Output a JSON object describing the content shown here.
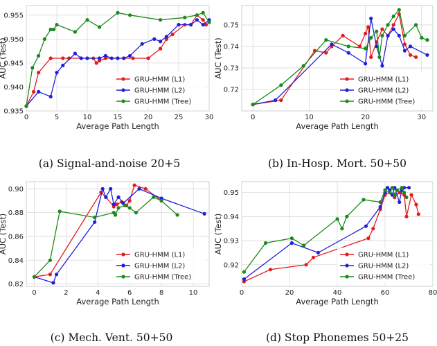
{
  "series_colors": {
    "GRU-HMM (L1)": "#e41a1c",
    "GRU-HMM (L2)": "#1f1fe0",
    "GRU-HMM (Tree)": "#1a8a1a"
  },
  "chart_data": [
    {
      "type": "line",
      "caption": "(a) Signal-and-noise 20+5",
      "xlabel": "Average Path Length",
      "ylabel": "AUC (Test)",
      "xlim": [
        0,
        30
      ],
      "ylim": [
        0.935,
        0.957
      ],
      "xticks": [
        0,
        5,
        10,
        15,
        20,
        25,
        30
      ],
      "yticks": [
        0.935,
        0.94,
        0.945,
        0.95,
        0.955
      ],
      "grid": true,
      "legend": "bottom-right",
      "series": [
        {
          "name": "GRU-HMM (L1)",
          "color": "#e41a1c",
          "points": [
            [
              0,
              0.936
            ],
            [
              1.2,
              0.939
            ],
            [
              2,
              0.943
            ],
            [
              4,
              0.946
            ],
            [
              6,
              0.946
            ],
            [
              7,
              0.946
            ],
            [
              9,
              0.946
            ],
            [
              11,
              0.946
            ],
            [
              11.5,
              0.945
            ],
            [
              12,
              0.9455
            ],
            [
              13,
              0.946
            ],
            [
              15,
              0.946
            ],
            [
              16,
              0.946
            ],
            [
              17.5,
              0.946
            ],
            [
              20,
              0.946
            ],
            [
              22,
              0.948
            ],
            [
              23,
              0.95
            ],
            [
              24,
              0.951
            ],
            [
              26,
              0.953
            ],
            [
              27,
              0.953
            ],
            [
              28,
              0.955
            ],
            [
              29,
              0.954
            ],
            [
              29.5,
              0.953
            ]
          ]
        },
        {
          "name": "GRU-HMM (L2)",
          "color": "#1f1fe0",
          "points": [
            [
              0,
              0.936
            ],
            [
              2,
              0.939
            ],
            [
              4,
              0.938
            ],
            [
              5,
              0.943
            ],
            [
              6,
              0.9445
            ],
            [
              8,
              0.947
            ],
            [
              9,
              0.946
            ],
            [
              10,
              0.946
            ],
            [
              12,
              0.946
            ],
            [
              13,
              0.9465
            ],
            [
              14,
              0.946
            ],
            [
              15,
              0.946
            ],
            [
              16,
              0.946
            ],
            [
              17,
              0.9465
            ],
            [
              19,
              0.949
            ],
            [
              21,
              0.95
            ],
            [
              22,
              0.9495
            ],
            [
              23,
              0.9505
            ],
            [
              25,
              0.953
            ],
            [
              27,
              0.953
            ],
            [
              28,
              0.954
            ],
            [
              29,
              0.953
            ],
            [
              30,
              0.954
            ]
          ]
        },
        {
          "name": "GRU-HMM (Tree)",
          "color": "#1a8a1a",
          "points": [
            [
              0,
              0.936
            ],
            [
              1,
              0.944
            ],
            [
              2,
              0.9465
            ],
            [
              3,
              0.95
            ],
            [
              4,
              0.952
            ],
            [
              4.5,
              0.952
            ],
            [
              5,
              0.953
            ],
            [
              8,
              0.9515
            ],
            [
              10,
              0.954
            ],
            [
              12,
              0.9525
            ],
            [
              15,
              0.9555
            ],
            [
              17,
              0.955
            ],
            [
              22,
              0.954
            ],
            [
              26,
              0.9545
            ],
            [
              28,
              0.955
            ],
            [
              29,
              0.9555
            ],
            [
              30,
              0.9535
            ]
          ]
        }
      ]
    },
    {
      "type": "line",
      "caption": "(b) In-Hosp. Mort. 50+50",
      "xlabel": "Average Path Length",
      "ylabel": "AUC (Test)",
      "xlim": [
        -2,
        32
      ],
      "ylim": [
        0.71,
        0.759
      ],
      "xticks": [
        0,
        10,
        20,
        30
      ],
      "yticks": [
        0.72,
        0.73,
        0.74,
        0.75
      ],
      "grid": true,
      "legend": "bottom-right",
      "series": [
        {
          "name": "GRU-HMM (L1)",
          "color": "#e41a1c",
          "points": [
            [
              0,
              0.713
            ],
            [
              5,
              0.715
            ],
            [
              11,
              0.738
            ],
            [
              13,
              0.737
            ],
            [
              14,
              0.74
            ],
            [
              16,
              0.745
            ],
            [
              19,
              0.74
            ],
            [
              20,
              0.746
            ],
            [
              20.5,
              0.749
            ],
            [
              21,
              0.735
            ],
            [
              22,
              0.742
            ],
            [
              23,
              0.748
            ],
            [
              24,
              0.745
            ],
            [
              25,
              0.75
            ],
            [
              26,
              0.755
            ],
            [
              27,
              0.741
            ],
            [
              28,
              0.736
            ],
            [
              29,
              0.735
            ]
          ]
        },
        {
          "name": "GRU-HMM (L2)",
          "color": "#1f1fe0",
          "points": [
            [
              0,
              0.713
            ],
            [
              4,
              0.715
            ],
            [
              14,
              0.741
            ],
            [
              17,
              0.737
            ],
            [
              20,
              0.732
            ],
            [
              21,
              0.753
            ],
            [
              22,
              0.74
            ],
            [
              23,
              0.731
            ],
            [
              24,
              0.745
            ],
            [
              25,
              0.748
            ],
            [
              26,
              0.745
            ],
            [
              27,
              0.738
            ],
            [
              28,
              0.74
            ],
            [
              31,
              0.736
            ]
          ]
        },
        {
          "name": "GRU-HMM (Tree)",
          "color": "#1a8a1a",
          "points": [
            [
              0,
              0.713
            ],
            [
              5,
              0.722
            ],
            [
              9,
              0.731
            ],
            [
              13,
              0.743
            ],
            [
              17,
              0.74
            ],
            [
              20,
              0.739
            ],
            [
              21,
              0.744
            ],
            [
              22,
              0.747
            ],
            [
              22.5,
              0.735
            ],
            [
              23,
              0.745
            ],
            [
              24,
              0.75
            ],
            [
              25,
              0.754
            ],
            [
              26,
              0.757
            ],
            [
              27,
              0.745
            ],
            [
              29,
              0.75
            ],
            [
              30,
              0.744
            ],
            [
              31,
              0.743
            ]
          ]
        }
      ]
    },
    {
      "type": "line",
      "caption": "(c) Mech. Vent. 50+50",
      "xlabel": "Average Path Length",
      "ylabel": "AUC (Test)",
      "xlim": [
        -0.5,
        11
      ],
      "ylim": [
        0.818,
        0.906
      ],
      "xticks": [
        0,
        2,
        4,
        6,
        8,
        10
      ],
      "yticks": [
        0.82,
        0.84,
        0.86,
        0.88,
        0.9
      ],
      "grid": true,
      "legend": "bottom-right",
      "series": [
        {
          "name": "GRU-HMM (L1)",
          "color": "#e41a1c",
          "points": [
            [
              0,
              0.826
            ],
            [
              1,
              0.828
            ],
            [
              4.2,
              0.897
            ],
            [
              4.5,
              0.893
            ],
            [
              5,
              0.885
            ],
            [
              5.2,
              0.887
            ],
            [
              5.5,
              0.889
            ],
            [
              5.8,
              0.886
            ],
            [
              6,
              0.89
            ],
            [
              6.3,
              0.903
            ],
            [
              7,
              0.9
            ],
            [
              8,
              0.89
            ]
          ]
        },
        {
          "name": "GRU-HMM (L2)",
          "color": "#1f1fe0",
          "points": [
            [
              0,
              0.826
            ],
            [
              1.2,
              0.821
            ],
            [
              1.4,
              0.828
            ],
            [
              3.8,
              0.872
            ],
            [
              4.3,
              0.9
            ],
            [
              4.5,
              0.893
            ],
            [
              4.8,
              0.9
            ],
            [
              5,
              0.887
            ],
            [
              5.3,
              0.893
            ],
            [
              5.6,
              0.888
            ],
            [
              6.6,
              0.9
            ],
            [
              8,
              0.892
            ],
            [
              10.7,
              0.879
            ]
          ]
        },
        {
          "name": "GRU-HMM (Tree)",
          "color": "#1a8a1a",
          "points": [
            [
              0,
              0.826
            ],
            [
              1,
              0.84
            ],
            [
              1.6,
              0.881
            ],
            [
              3.8,
              0.876
            ],
            [
              5,
              0.88
            ],
            [
              5.1,
              0.878
            ],
            [
              5.3,
              0.884
            ],
            [
              5.7,
              0.886
            ],
            [
              6,
              0.884
            ],
            [
              6.4,
              0.88
            ],
            [
              7.5,
              0.893
            ],
            [
              8,
              0.89
            ],
            [
              9,
              0.878
            ]
          ]
        }
      ]
    },
    {
      "type": "line",
      "caption": "(d) Stop Phonemes 50+25",
      "xlabel": "Average Path Length",
      "ylabel": "AUC (Test)",
      "xlim": [
        0,
        80
      ],
      "ylim": [
        0.911,
        0.9545
      ],
      "xticks": [
        0,
        20,
        40,
        60,
        80
      ],
      "yticks": [
        0.92,
        0.93,
        0.94,
        0.95
      ],
      "grid": true,
      "legend": "bottom-right",
      "series": [
        {
          "name": "GRU-HMM (L1)",
          "color": "#e41a1c",
          "points": [
            [
              1,
              0.913
            ],
            [
              12,
              0.918
            ],
            [
              27,
              0.92
            ],
            [
              30,
              0.923
            ],
            [
              53,
              0.931
            ],
            [
              55,
              0.935
            ],
            [
              58,
              0.943
            ],
            [
              60,
              0.949
            ],
            [
              62,
              0.95
            ],
            [
              64,
              0.948
            ],
            [
              66,
              0.95
            ],
            [
              68,
              0.949
            ],
            [
              69,
              0.94
            ],
            [
              71,
              0.949
            ],
            [
              73,
              0.945
            ],
            [
              74,
              0.941
            ]
          ]
        },
        {
          "name": "GRU-HMM (L2)",
          "color": "#1f1fe0",
          "points": [
            [
              1,
              0.914
            ],
            [
              21,
              0.929
            ],
            [
              32,
              0.925
            ],
            [
              52,
              0.936
            ],
            [
              58,
              0.944
            ],
            [
              60,
              0.95
            ],
            [
              61,
              0.952
            ],
            [
              62,
              0.951
            ],
            [
              63,
              0.949
            ],
            [
              64,
              0.952
            ],
            [
              66,
              0.946
            ],
            [
              67,
              0.951
            ],
            [
              68,
              0.952
            ],
            [
              70,
              0.952
            ]
          ]
        },
        {
          "name": "GRU-HMM (Tree)",
          "color": "#1a8a1a",
          "points": [
            [
              1,
              0.917
            ],
            [
              10,
              0.929
            ],
            [
              21,
              0.931
            ],
            [
              26,
              0.928
            ],
            [
              40,
              0.939
            ],
            [
              42,
              0.935
            ],
            [
              44,
              0.94
            ],
            [
              51,
              0.947
            ],
            [
              58,
              0.946
            ],
            [
              60,
              0.951
            ],
            [
              62,
              0.95
            ],
            [
              63,
              0.952
            ],
            [
              64,
              0.949
            ],
            [
              65,
              0.951
            ],
            [
              67,
              0.952
            ],
            [
              68,
              0.95
            ],
            [
              69,
              0.948
            ]
          ]
        }
      ]
    }
  ]
}
